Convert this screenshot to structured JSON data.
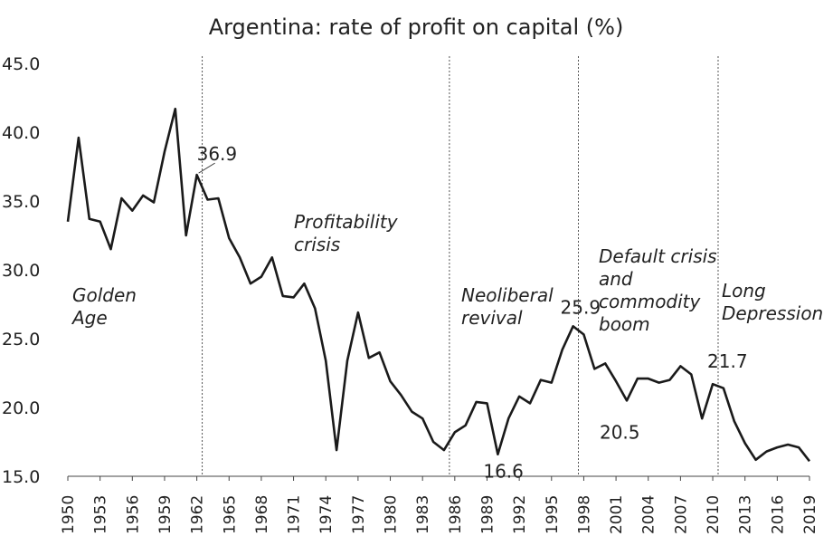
{
  "chart_data": {
    "type": "line",
    "title": "Argentina: rate of profit on capital (%)",
    "xlabel": "",
    "ylabel": "",
    "ylim": [
      15.0,
      45.0
    ],
    "yticks": [
      "15.0",
      "20.0",
      "25.0",
      "30.0",
      "35.0",
      "40.0",
      "45.0"
    ],
    "xticks": [
      "1950",
      "1953",
      "1956",
      "1959",
      "1962",
      "1965",
      "1968",
      "1971",
      "1974",
      "1977",
      "1980",
      "1983",
      "1986",
      "1989",
      "1992",
      "1995",
      "1998",
      "2001",
      "2004",
      "2007",
      "2010",
      "2013",
      "2016",
      "2019"
    ],
    "grid": false,
    "line_color": "#1a1a1a",
    "divider_color": "#555555",
    "series": [
      {
        "x": [
          1950,
          1951,
          1952,
          1953,
          1954,
          1955,
          1956,
          1957,
          1958,
          1959,
          1960,
          1961,
          1962,
          1963,
          1964,
          1965,
          1966,
          1967,
          1968,
          1969,
          1970,
          1971,
          1972,
          1973,
          1974,
          1975,
          1976,
          1977,
          1978,
          1979,
          1980,
          1981,
          1982,
          1983,
          1984,
          1985,
          1986,
          1987,
          1988,
          1989,
          1990,
          1991,
          1992,
          1993,
          1994,
          1995,
          1996,
          1997,
          1998,
          1999,
          2000,
          2001,
          2002,
          2003,
          2004,
          2005,
          2006,
          2007,
          2008,
          2009,
          2010,
          2011,
          2012,
          2013,
          2014,
          2015,
          2016,
          2017,
          2018,
          2019
        ],
        "values": [
          33.5,
          39.6,
          33.7,
          33.5,
          31.5,
          35.2,
          34.3,
          35.4,
          34.9,
          38.6,
          41.7,
          32.5,
          36.9,
          35.1,
          35.2,
          32.3,
          30.9,
          29.0,
          29.5,
          30.9,
          28.1,
          28.0,
          29.0,
          27.2,
          23.4,
          16.9,
          23.4,
          26.9,
          23.6,
          24.0,
          21.9,
          20.9,
          19.7,
          19.2,
          17.5,
          16.9,
          18.2,
          18.7,
          20.4,
          20.3,
          16.6,
          19.2,
          20.8,
          20.3,
          22.0,
          21.8,
          24.2,
          25.9,
          25.3,
          22.8,
          23.2,
          21.9,
          20.5,
          22.1,
          22.1,
          21.8,
          22.0,
          23.0,
          22.4,
          19.2,
          21.7,
          21.4,
          19.0,
          17.4,
          16.2,
          16.8,
          17.1,
          17.3,
          17.1,
          16.1
        ]
      }
    ],
    "dividers": [
      1962.5,
      1985.5,
      1997.5,
      2010.5
    ],
    "periods": [
      {
        "lines": [
          "Golden",
          "Age"
        ]
      },
      {
        "lines": [
          "Profitability",
          "crisis"
        ]
      },
      {
        "lines": [
          "Neoliberal",
          "revival"
        ]
      },
      {
        "lines": [
          "Default crisis",
          "and",
          "commodity",
          "boom"
        ]
      },
      {
        "lines": [
          "Long",
          "Depression"
        ]
      }
    ],
    "data_labels": [
      {
        "x": 1962,
        "y": 36.9,
        "text": "36.9"
      },
      {
        "x": 1990,
        "y": 16.6,
        "text": "16.6"
      },
      {
        "x": 1997,
        "y": 25.9,
        "text": "25.9"
      },
      {
        "x": 2002,
        "y": 20.5,
        "text": "20.5"
      },
      {
        "x": 2010,
        "y": 21.7,
        "text": "21.7"
      }
    ]
  }
}
